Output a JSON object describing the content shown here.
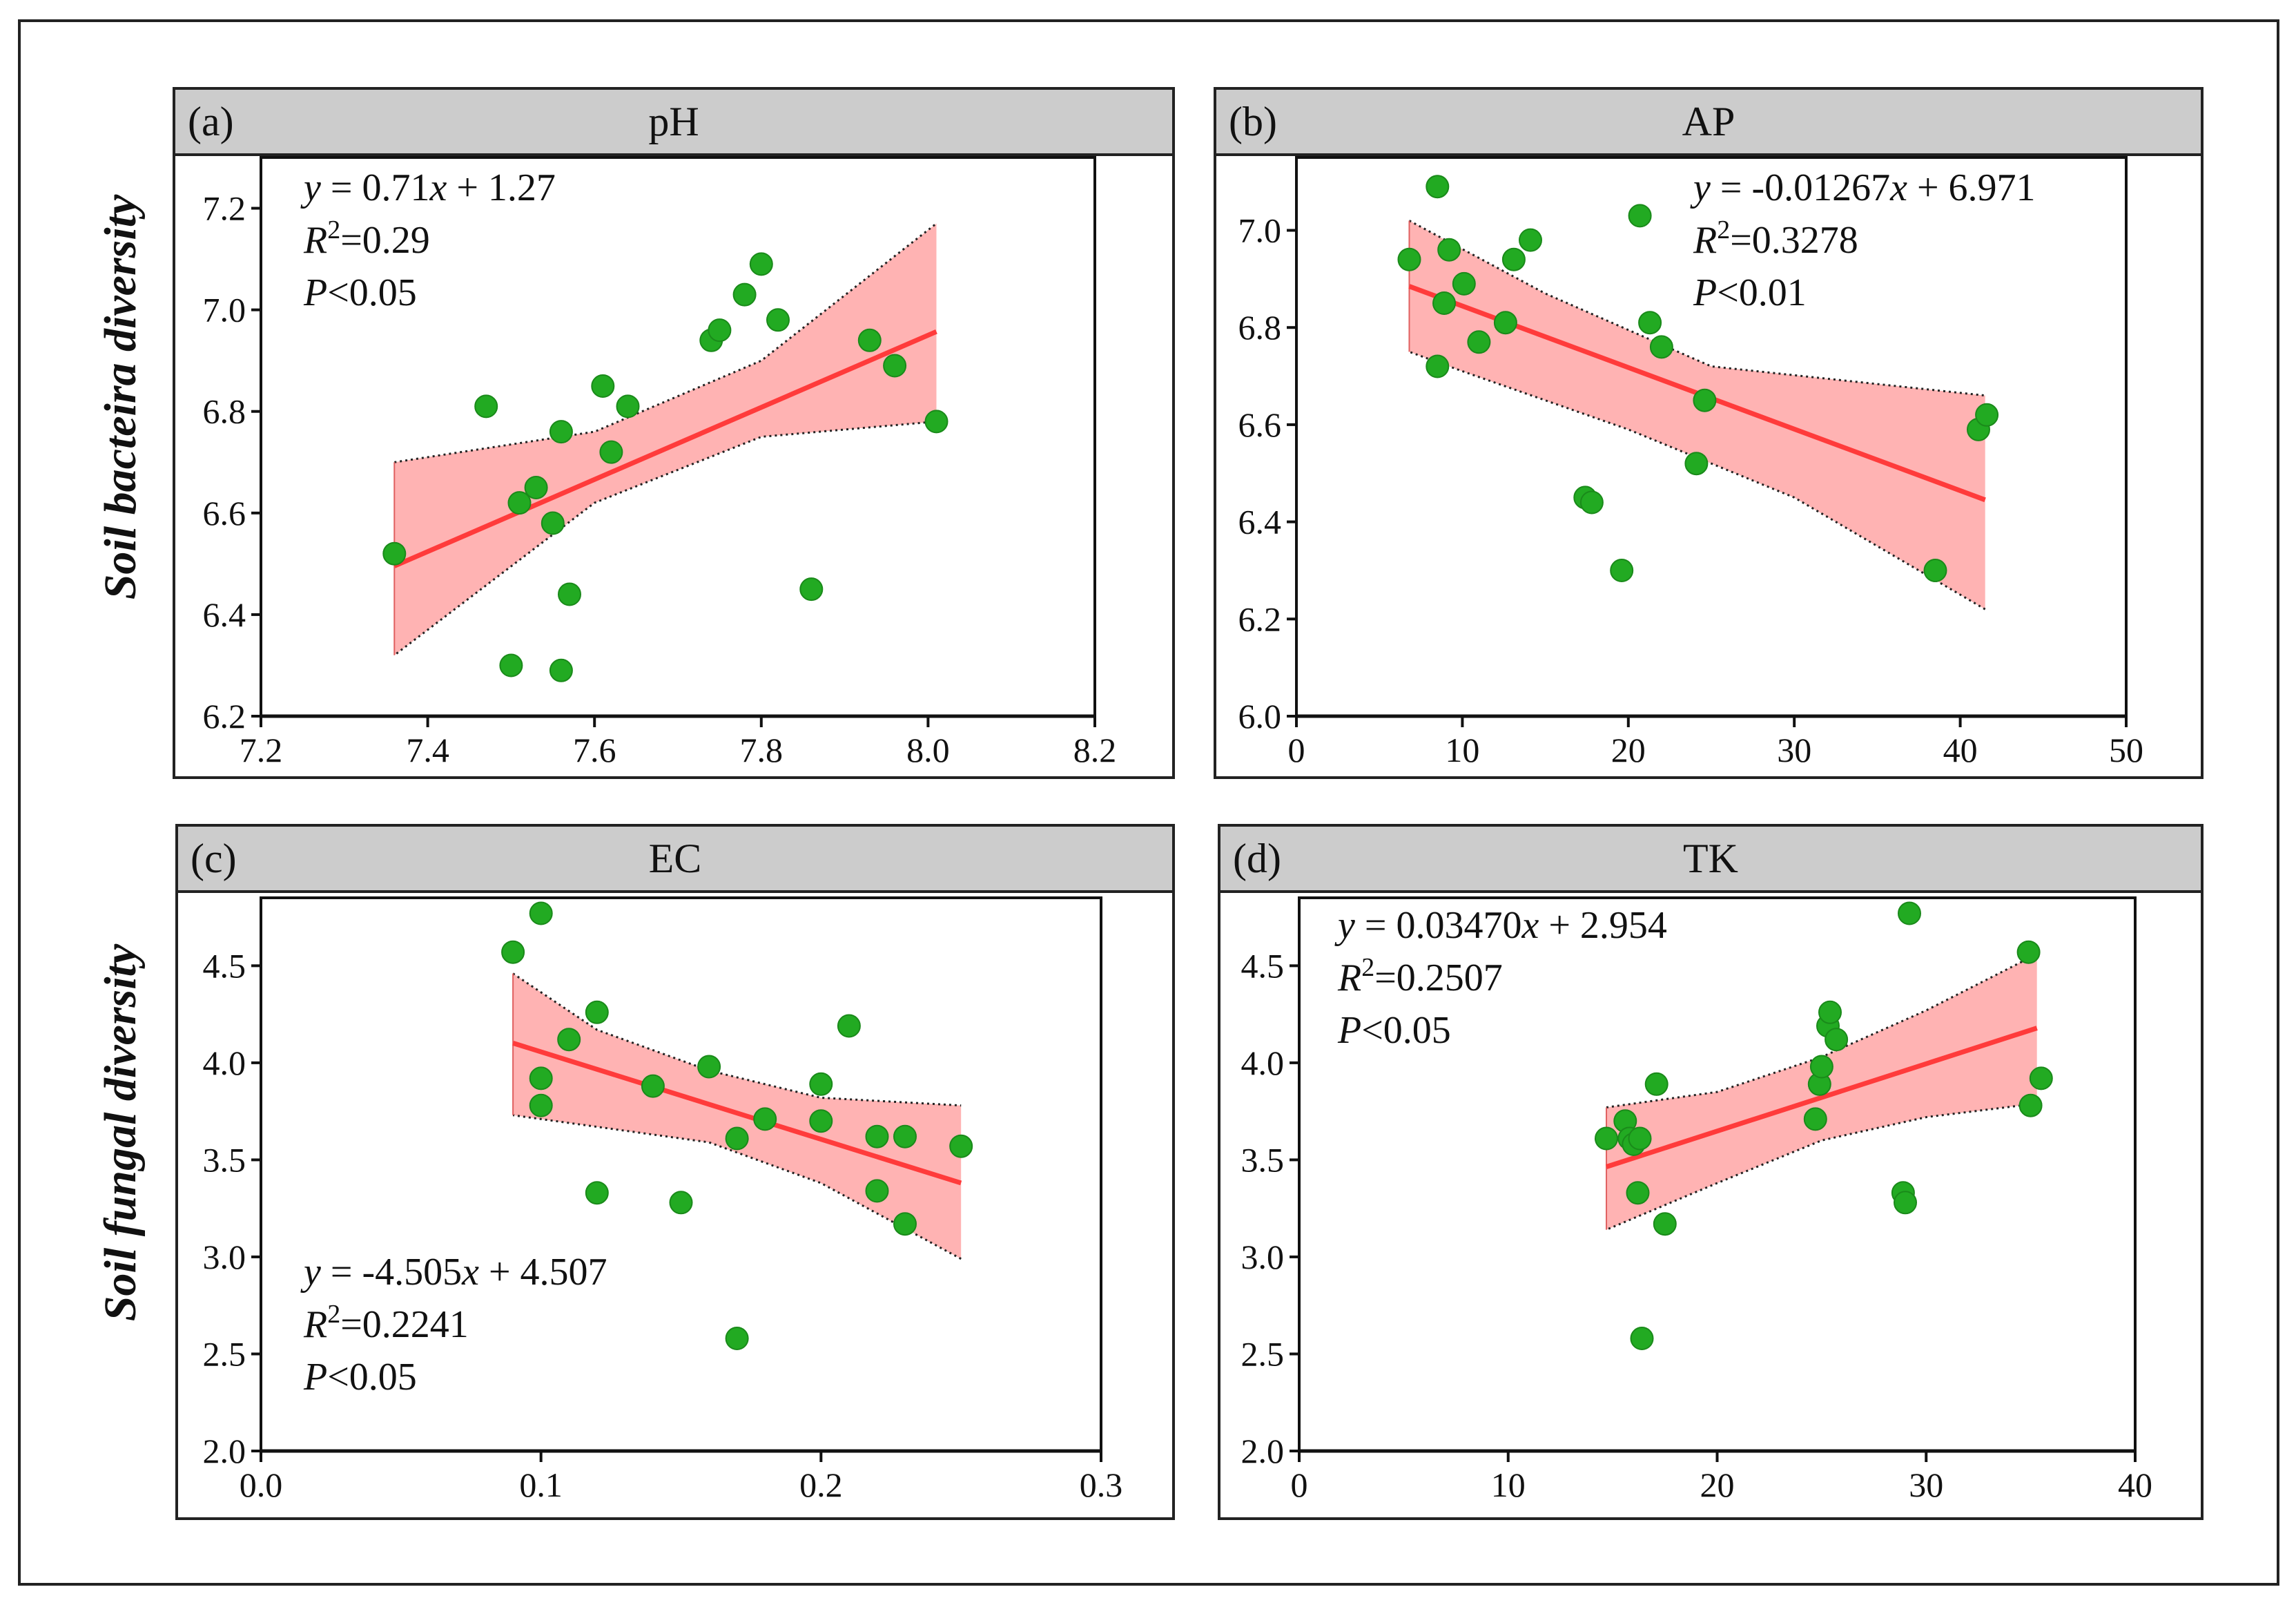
{
  "y_labels": {
    "top": "Soil bacteira diversity",
    "bottom": "Soil fungal diversity"
  },
  "colors": {
    "point": "#22aa22",
    "fit_line": "#ff3b3b",
    "band": "#ffb3b3",
    "header": "#cccccc"
  },
  "chart_data": [
    {
      "type": "scatter",
      "label": "(a)",
      "title": "pH",
      "xlim": [
        7.2,
        8.2
      ],
      "ylim": [
        6.2,
        7.3
      ],
      "xticks": [
        "7.2",
        "7.4",
        "7.6",
        "7.8",
        "8.0",
        "8.2"
      ],
      "yticks": [
        "6.2",
        "6.4",
        "6.6",
        "6.8",
        "7.0",
        "7.2"
      ],
      "equation": {
        "y": "y",
        "eq": " = 0.71",
        "x": "x",
        "rest": " + 1.27"
      },
      "r2": {
        "r": "R",
        "sup": "2",
        "val": "=0.29"
      },
      "p": {
        "p": "P",
        "val": "<0.05"
      },
      "fit": {
        "slope": 0.71,
        "intercept": 1.27,
        "x0": 7.36,
        "x1": 8.01
      },
      "band_upper": [
        [
          7.36,
          6.7
        ],
        [
          7.6,
          6.76
        ],
        [
          7.8,
          6.9
        ],
        [
          8.01,
          7.17
        ]
      ],
      "band_lower": [
        [
          8.01,
          6.78
        ],
        [
          7.8,
          6.75
        ],
        [
          7.6,
          6.62
        ],
        [
          7.36,
          6.32
        ]
      ],
      "points": [
        [
          7.36,
          6.52
        ],
        [
          7.47,
          6.81
        ],
        [
          7.5,
          6.3
        ],
        [
          7.51,
          6.62
        ],
        [
          7.53,
          6.65
        ],
        [
          7.55,
          6.58
        ],
        [
          7.56,
          6.76
        ],
        [
          7.56,
          6.29
        ],
        [
          7.57,
          6.44
        ],
        [
          7.61,
          6.85
        ],
        [
          7.62,
          6.72
        ],
        [
          7.64,
          6.81
        ],
        [
          7.74,
          6.94
        ],
        [
          7.75,
          6.96
        ],
        [
          7.78,
          7.03
        ],
        [
          7.8,
          7.09
        ],
        [
          7.82,
          6.98
        ],
        [
          7.86,
          6.45
        ],
        [
          7.93,
          6.94
        ],
        [
          7.96,
          6.89
        ],
        [
          8.01,
          6.78
        ]
      ]
    },
    {
      "type": "scatter",
      "label": "(b)",
      "title": "AP",
      "xlim": [
        0,
        50
      ],
      "ylim": [
        6.0,
        7.15
      ],
      "xticks": [
        "0",
        "10",
        "20",
        "30",
        "40",
        "50"
      ],
      "yticks": [
        "6.0",
        "6.2",
        "6.4",
        "6.6",
        "6.8",
        "7.0"
      ],
      "equation": {
        "y": "y",
        "eq": " = -0.01267",
        "x": "x",
        "rest": " + 6.971"
      },
      "r2": {
        "r": "R",
        "sup": "2",
        "val": "=0.3278"
      },
      "p": {
        "p": "P",
        "val": "<0.01"
      },
      "fit": {
        "slope": -0.01267,
        "intercept": 6.971,
        "x0": 6.8,
        "x1": 41.5
      },
      "band_upper": [
        [
          6.8,
          7.02
        ],
        [
          15,
          6.87
        ],
        [
          25,
          6.72
        ],
        [
          41.5,
          6.66
        ]
      ],
      "band_lower": [
        [
          41.5,
          6.22
        ],
        [
          30,
          6.45
        ],
        [
          20,
          6.59
        ],
        [
          10,
          6.71
        ],
        [
          6.8,
          6.75
        ]
      ],
      "points": [
        [
          6.8,
          6.94
        ],
        [
          8.5,
          6.72
        ],
        [
          8.5,
          7.09
        ],
        [
          8.9,
          6.85
        ],
        [
          9.2,
          6.96
        ],
        [
          10.1,
          6.89
        ],
        [
          11.0,
          6.77
        ],
        [
          12.6,
          6.81
        ],
        [
          13.1,
          6.94
        ],
        [
          14.1,
          6.98
        ],
        [
          17.4,
          6.45
        ],
        [
          17.8,
          6.44
        ],
        [
          19.6,
          6.3
        ],
        [
          20.7,
          7.03
        ],
        [
          21.3,
          6.81
        ],
        [
          22.0,
          6.76
        ],
        [
          24.1,
          6.52
        ],
        [
          24.6,
          6.65
        ],
        [
          38.5,
          6.3
        ],
        [
          41.1,
          6.59
        ],
        [
          41.6,
          6.62
        ]
      ]
    },
    {
      "type": "scatter",
      "label": "(c)",
      "title": "EC",
      "xlim": [
        0,
        0.3
      ],
      "ylim": [
        2.0,
        4.85
      ],
      "xticks": [
        "0.0",
        "0.1",
        "0.2",
        "0.3"
      ],
      "yticks": [
        "2.0",
        "2.5",
        "3.0",
        "3.5",
        "4.0",
        "4.5"
      ],
      "equation": {
        "y": "y",
        "eq": " = -4.505",
        "x": "x",
        "rest": " + 4.507"
      },
      "r2": {
        "r": "R",
        "sup": "2",
        "val": "=0.2241"
      },
      "p": {
        "p": "P",
        "val": "<0.05"
      },
      "fit": {
        "slope": -4.505,
        "intercept": 4.507,
        "x0": 0.09,
        "x1": 0.25
      },
      "band_upper": [
        [
          0.09,
          4.46
        ],
        [
          0.12,
          4.17
        ],
        [
          0.16,
          3.96
        ],
        [
          0.2,
          3.82
        ],
        [
          0.25,
          3.78
        ]
      ],
      "band_lower": [
        [
          0.25,
          2.99
        ],
        [
          0.2,
          3.38
        ],
        [
          0.16,
          3.59
        ],
        [
          0.12,
          3.67
        ],
        [
          0.09,
          3.73
        ]
      ],
      "points": [
        [
          0.09,
          4.57
        ],
        [
          0.1,
          4.77
        ],
        [
          0.1,
          3.92
        ],
        [
          0.1,
          3.78
        ],
        [
          0.11,
          4.12
        ],
        [
          0.12,
          4.26
        ],
        [
          0.12,
          3.33
        ],
        [
          0.14,
          3.88
        ],
        [
          0.15,
          3.28
        ],
        [
          0.16,
          3.98
        ],
        [
          0.17,
          3.61
        ],
        [
          0.17,
          2.58
        ],
        [
          0.18,
          3.71
        ],
        [
          0.2,
          3.89
        ],
        [
          0.2,
          3.7
        ],
        [
          0.21,
          4.19
        ],
        [
          0.22,
          3.62
        ],
        [
          0.22,
          3.34
        ],
        [
          0.23,
          3.62
        ],
        [
          0.23,
          3.17
        ],
        [
          0.25,
          3.57
        ]
      ]
    },
    {
      "type": "scatter",
      "label": "(d)",
      "title": "TK",
      "xlim": [
        0,
        40
      ],
      "ylim": [
        2.0,
        4.85
      ],
      "xticks": [
        "0",
        "10",
        "20",
        "30",
        "40"
      ],
      "yticks": [
        "2.0",
        "2.5",
        "3.0",
        "3.5",
        "4.0",
        "4.5"
      ],
      "equation": {
        "y": "y",
        "eq": " = 0.03470",
        "x": "x",
        "rest": " + 2.954"
      },
      "r2": {
        "r": "R",
        "sup": "2",
        "val": "=0.2507"
      },
      "p": {
        "p": "P",
        "val": "<0.05"
      },
      "fit": {
        "slope": 0.0347,
        "intercept": 2.954,
        "x0": 14.7,
        "x1": 35.3
      },
      "band_upper": [
        [
          14.7,
          3.77
        ],
        [
          20,
          3.85
        ],
        [
          25,
          4.03
        ],
        [
          30,
          4.27
        ],
        [
          35.3,
          4.56
        ]
      ],
      "band_lower": [
        [
          35.3,
          3.79
        ],
        [
          30,
          3.72
        ],
        [
          25,
          3.6
        ],
        [
          20,
          3.38
        ],
        [
          14.7,
          3.14
        ]
      ],
      "points": [
        [
          14.7,
          3.61
        ],
        [
          15.6,
          3.7
        ],
        [
          15.8,
          3.61
        ],
        [
          16.0,
          3.58
        ],
        [
          16.2,
          3.33
        ],
        [
          16.3,
          3.61
        ],
        [
          16.4,
          2.58
        ],
        [
          17.1,
          3.89
        ],
        [
          17.5,
          3.17
        ],
        [
          24.7,
          3.71
        ],
        [
          24.9,
          3.89
        ],
        [
          25.0,
          3.98
        ],
        [
          25.3,
          4.19
        ],
        [
          25.4,
          4.26
        ],
        [
          25.7,
          4.12
        ],
        [
          28.9,
          3.33
        ],
        [
          29.0,
          3.28
        ],
        [
          29.2,
          4.77
        ],
        [
          34.9,
          4.57
        ],
        [
          35.0,
          3.78
        ],
        [
          35.5,
          3.92
        ]
      ]
    }
  ]
}
